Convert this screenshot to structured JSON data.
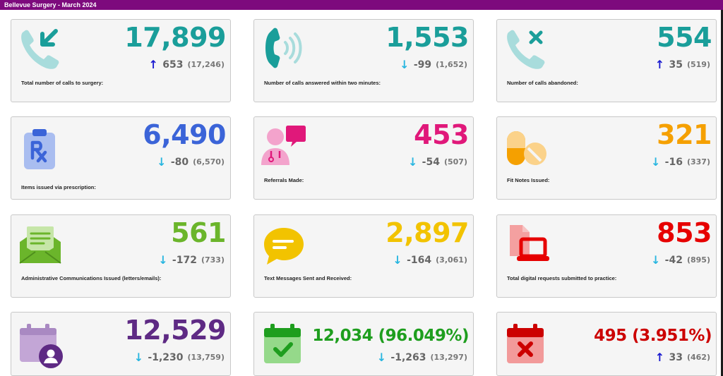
{
  "header": {
    "title": "Bellevue Surgery - March 2024"
  },
  "colors": {
    "teal": "#1a9e9a",
    "blue": "#3b64d8",
    "pink": "#e0187a",
    "orange": "#f5a000",
    "green": "#6bb52b",
    "yellow": "#f2c300",
    "red": "#e60000",
    "purple": "#5e2a84",
    "darkgreen": "#1e9e1e",
    "darkred": "#cc0000",
    "arrow_up": "#1a1ad0",
    "arrow_down": "#29b6e0"
  },
  "cards": [
    {
      "name": "calls-to-surgery",
      "icon": "phone-incoming-icon",
      "value": "17,899",
      "value_color": "#1a9e9a",
      "trend": "up",
      "arrow": "↑",
      "diff": "653",
      "previous": "(17,246)",
      "label": "Total number of calls to surgery:"
    },
    {
      "name": "calls-answered",
      "icon": "phone-ringing-icon",
      "value": "1,553",
      "value_color": "#1a9e9a",
      "trend": "down",
      "arrow": "↓",
      "diff": "-99",
      "previous": "(1,652)",
      "label": "Number of calls answered within two minutes:"
    },
    {
      "name": "calls-abandoned",
      "icon": "phone-missed-icon",
      "value": "554",
      "value_color": "#1a9e9a",
      "trend": "up",
      "arrow": "↑",
      "diff": "35",
      "previous": "(519)",
      "label": "Number of calls abandoned:"
    },
    {
      "name": "items-prescription",
      "icon": "prescription-clipboard-icon",
      "value": "6,490",
      "value_color": "#3b64d8",
      "trend": "down",
      "arrow": "↓",
      "diff": "-80",
      "previous": "(6,570)",
      "label": "Items issued via prescription:"
    },
    {
      "name": "referrals-made",
      "icon": "doctor-chat-icon",
      "value": "453",
      "value_color": "#e0187a",
      "trend": "down",
      "arrow": "↓",
      "diff": "-54",
      "previous": "(507)",
      "label": "Referrals Made:"
    },
    {
      "name": "fit-notes",
      "icon": "pills-icon",
      "value": "321",
      "value_color": "#f5a000",
      "trend": "down",
      "arrow": "↓",
      "diff": "-16",
      "previous": "(337)",
      "label": "Fit Notes Issued:"
    },
    {
      "name": "admin-comms",
      "icon": "open-envelope-icon",
      "value": "561",
      "value_color": "#6bb52b",
      "trend": "down",
      "arrow": "↓",
      "diff": "-172",
      "previous": "(733)",
      "label": "Administrative Communications Issued (letters/emails):"
    },
    {
      "name": "text-messages",
      "icon": "speech-bubble-icon",
      "value": "2,897",
      "value_color": "#f2c300",
      "trend": "down",
      "arrow": "↓",
      "diff": "-164",
      "previous": "(3,061)",
      "label": "Text Messages Sent and Received:"
    },
    {
      "name": "digital-requests",
      "icon": "laptop-document-icon",
      "value": "853",
      "value_color": "#e60000",
      "trend": "down",
      "arrow": "↓",
      "diff": "-42",
      "previous": "(895)",
      "label": "Total digital requests submitted to practice:"
    },
    {
      "name": "appointments",
      "icon": "calendar-user-icon",
      "value": "12,529",
      "value_color": "#5e2a84",
      "trend": "down",
      "arrow": "↓",
      "diff": "-1,230",
      "previous": "(13,759)",
      "label": ""
    },
    {
      "name": "appointments-attended",
      "icon": "calendar-check-icon",
      "value": "12,034 (96.049%)",
      "value_color": "#1e9e1e",
      "trend": "down",
      "arrow": "↓",
      "diff": "-1,263",
      "previous": "(13,297)",
      "label": ""
    },
    {
      "name": "appointments-missed",
      "icon": "calendar-cross-icon",
      "value": "495 (3.951%)",
      "value_color": "#cc0000",
      "trend": "up",
      "arrow": "↑",
      "diff": "33",
      "previous": "(462)",
      "label": ""
    }
  ]
}
